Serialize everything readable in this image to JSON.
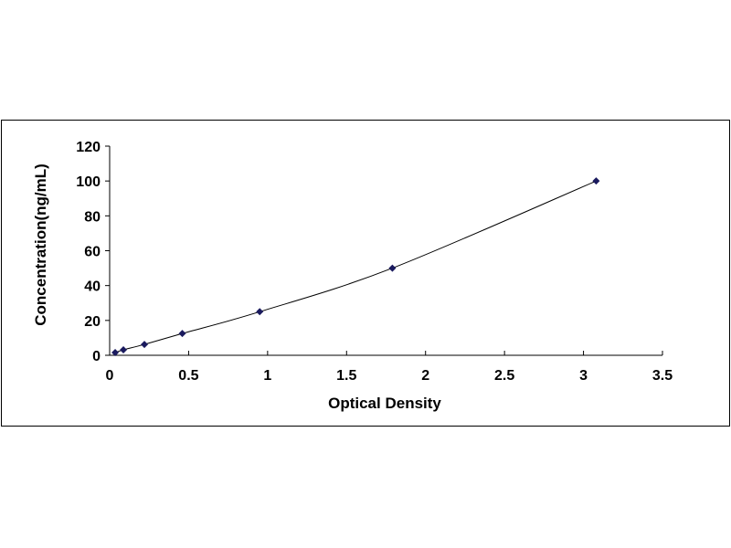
{
  "chart_data": {
    "type": "scatter",
    "title": "",
    "xlabel": "Optical Density",
    "ylabel": "Concentration(ng/mL)",
    "xlim": [
      0,
      3.5
    ],
    "ylim": [
      0,
      120
    ],
    "xticks": [
      "0",
      "0.5",
      "1",
      "1.5",
      "2",
      "2.5",
      "3",
      "3.5"
    ],
    "yticks": [
      "0",
      "20",
      "40",
      "60",
      "80",
      "100",
      "120"
    ],
    "grid": false,
    "trendline": "smooth curve",
    "marker_color": "#1a1a5e",
    "series": [
      {
        "x": [
          0.035,
          0.087,
          0.22,
          0.46,
          0.95,
          1.79,
          3.08
        ],
        "y": [
          1.56,
          3.12,
          6.25,
          12.5,
          25,
          50,
          100
        ]
      }
    ]
  }
}
